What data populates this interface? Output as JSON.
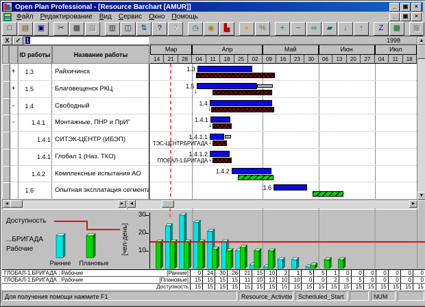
{
  "window": {
    "title": "Open Plan Professional - [Resource Barchart [AMUR]]",
    "controls": [
      {
        "name": "minimize-button",
        "glyph": "_"
      },
      {
        "name": "restore-button",
        "glyph": "▣"
      },
      {
        "name": "close-button",
        "glyph": "×"
      }
    ]
  },
  "menu": {
    "items": [
      "Файл",
      "Редактирование",
      "Вид",
      "Сервис",
      "Окно",
      "Помощь"
    ]
  },
  "toolbar": {
    "groups": [
      [
        {
          "name": "new-file-icon",
          "glyph": "□",
          "color": "#303030"
        },
        {
          "name": "open-file-icon",
          "glyph": "▤",
          "color": "#706000"
        },
        {
          "name": "save-icon",
          "glyph": "▣",
          "color": "#000080"
        }
      ],
      [
        {
          "name": "cut-icon",
          "glyph": "✂",
          "color": "#303030"
        },
        {
          "name": "copy-icon",
          "glyph": "▦",
          "color": "#303030"
        },
        {
          "name": "paste-icon",
          "glyph": "▨",
          "color": "#303030",
          "disabled": true
        }
      ],
      [
        {
          "name": "print-icon",
          "glyph": "▥",
          "color": "#303030"
        },
        {
          "name": "print-preview-icon",
          "glyph": "◫",
          "color": "#303030"
        },
        {
          "name": "sort-icon",
          "glyph": "⇅",
          "color": "#004080"
        },
        {
          "name": "help-icon",
          "glyph": "?",
          "color": "#000080"
        },
        {
          "name": "context-help-icon",
          "glyph": "?",
          "color": "#303030",
          "disabled": true
        }
      ],
      [
        {
          "name": "clock-icon",
          "glyph": "◷",
          "color": "#007070"
        },
        {
          "name": "resource-icon",
          "glyph": "◉",
          "color": "#b08000"
        },
        {
          "name": "barchart-icon",
          "glyph": "▙",
          "color": "#b00000"
        }
      ],
      [
        {
          "name": "cost-icon",
          "glyph": "●",
          "color": "#c8b400"
        },
        {
          "name": "percent-icon",
          "glyph": "%",
          "color": "#807000"
        }
      ],
      [
        {
          "name": "add-icon",
          "glyph": "+",
          "color": "#007070"
        },
        {
          "name": "remove-icon",
          "glyph": "−",
          "color": "#007070"
        },
        {
          "name": "link-icon",
          "glyph": "∞",
          "color": "#007070"
        },
        {
          "name": "bars-icon",
          "glyph": "▰",
          "color": "#007070"
        },
        {
          "name": "move-down-icon",
          "glyph": "↓",
          "color": "#007070"
        },
        {
          "name": "move-up-icon",
          "glyph": "↑",
          "color": "#007070"
        }
      ],
      [
        {
          "name": "zigzag-icon",
          "glyph": "Z",
          "color": "#0000c0"
        },
        {
          "name": "screen-icon",
          "glyph": "▦",
          "color": "#007000"
        }
      ],
      [
        {
          "name": "network-icon",
          "glyph": "▩",
          "color": "#303030",
          "disabled": true
        },
        {
          "name": "network2-icon",
          "glyph": "▩",
          "color": "#303030",
          "disabled": true
        }
      ]
    ]
  },
  "edit_bar": {
    "cancel_glyph": "X",
    "ok_glyph": "✓",
    "value": "1"
  },
  "timeline": {
    "year": "1998",
    "months": [
      {
        "label": "Мар",
        "weeks": 3
      },
      {
        "label": "Апр",
        "weeks": 5
      },
      {
        "label": "Май",
        "weeks": 4
      },
      {
        "label": "Июн",
        "weeks": 4
      },
      {
        "label": "Июл",
        "weeks": 3
      }
    ],
    "week_labels": [
      "14",
      "21",
      "28",
      "04",
      "11",
      "18",
      "25",
      "02",
      "09",
      "16",
      "23",
      "30",
      "06",
      "13",
      "20",
      "27",
      "04",
      "11",
      "18"
    ]
  },
  "task_table": {
    "columns": {
      "id": "ID работы",
      "name": "Название работы"
    }
  },
  "gantt": {
    "time_now_week": 1.42,
    "colors": {
      "early_bar": "#0a0ae0",
      "baseline_bar": "#7c0606",
      "actual_bar": "#00d800",
      "float_bar": "#b4b4b4"
    },
    "rows": [
      {
        "mark": "+",
        "id": "1.3",
        "name": "Райхичинск",
        "level": 1,
        "label": "1.3",
        "bars": [
          {
            "kind": "blue",
            "w0": 3.35,
            "w1": 7.3
          },
          {
            "kind": "red",
            "w0": 3.25,
            "w1": 8.9
          }
        ]
      },
      {
        "mark": "+",
        "id": "1.5",
        "name": "Благовещенск РКЦ",
        "level": 1,
        "label": "1.5",
        "arrow_w": 3.3,
        "bars": [
          {
            "kind": "blue",
            "w0": 3.3,
            "w1": 7.6
          },
          {
            "kind": "gray",
            "w0": 7.6,
            "w1": 8.75
          },
          {
            "kind": "red",
            "w0": 4.45,
            "w1": 8.7
          }
        ]
      },
      {
        "mark": "-",
        "id": "1.4",
        "name": "Свободный",
        "level": 1,
        "label": "1.4",
        "arrow_w": 4.3,
        "bars": [
          {
            "kind": "blue",
            "w0": 4.25,
            "w1": 8.7
          },
          {
            "kind": "red",
            "w0": 4.35,
            "w1": 8.85
          }
        ]
      },
      {
        "mark": "-",
        "id": "1.4.1",
        "name": "Монтажные, ПНР и ПрИ\"",
        "level": 2,
        "label": "1.4.1",
        "arrow_w": 4.35,
        "bars": [
          {
            "kind": "blue",
            "w0": 4.3,
            "w1": 5.7
          },
          {
            "kind": "red",
            "w0": 4.45,
            "w1": 5.8
          }
        ]
      },
      {
        "mark": "",
        "id": "1.4.1",
        "name": "СИТЭК-ЦЕНТР (ИБЭП)",
        "level": 3,
        "label": "1.4.1.1",
        "left_label": "ТЭС-ЦЕНТР.БРИГАДА",
        "arrow_w": 4.35,
        "bars": [
          {
            "kind": "blue",
            "w0": 4.25,
            "w1": 5.3
          },
          {
            "kind": "gray",
            "w0": 5.3,
            "w1": 5.75
          },
          {
            "kind": "red",
            "w0": 4.45,
            "w1": 5.45
          }
        ]
      },
      {
        "mark": "",
        "id": "1.4.1",
        "name": "Глобал 1 (Наз. ТКО)",
        "level": 3,
        "label": "1.4.1.2",
        "left_label": "ГЛОБАЛ-1.БРИГАДА",
        "arrow_w": 4.35,
        "bars": [
          {
            "kind": "blue",
            "w0": 4.25,
            "w1": 5.65
          },
          {
            "kind": "red",
            "w0": 4.45,
            "w1": 5.8
          }
        ]
      },
      {
        "mark": "",
        "id": "1.4.2",
        "name": "Комплексные испытания АО",
        "level": 2,
        "label": "1.4.2",
        "bars": [
          {
            "kind": "blue",
            "w0": 5.8,
            "w1": 8.65
          },
          {
            "kind": "green",
            "w0": 6.25,
            "w1": 8.8
          }
        ]
      },
      {
        "mark": "",
        "id": "1.6",
        "name": "Опытная эксплатация сегмента",
        "level": 1,
        "label": "1.6",
        "bars": [
          {
            "kind": "blue",
            "w0": 8.8,
            "w1": 11.2
          },
          {
            "kind": "green",
            "w0": 11.6,
            "w1": 13.75
          }
        ]
      }
    ]
  },
  "histogram": {
    "unit": "[чел-день]",
    "ticks": [
      30,
      20,
      10
    ],
    "legend": {
      "availability": "Доступность",
      "resource": "...БРИГАДА",
      "resource2": "Рабочие",
      "early": "Ранние",
      "planned": "Плановые"
    },
    "series": {
      "early": [
        0,
        24,
        30,
        26,
        21,
        15,
        10,
        2,
        1,
        5,
        5,
        1,
        0,
        0,
        0,
        0,
        0,
        0,
        0
      ],
      "planned": [
        15,
        15,
        15,
        15,
        11,
        10,
        12,
        10,
        10,
        0,
        0,
        2,
        5,
        5,
        0,
        0,
        0,
        0,
        0
      ],
      "availability": 15
    },
    "colors": {
      "early": "#00e6e6",
      "planned": "#00d800",
      "availability": "#ff0000"
    }
  },
  "value_table": {
    "rows": [
      {
        "label": "ГЛОБАЛ-1.БРИГАДА : Рабочие",
        "unit": "[Ранние]",
        "values": [
          0,
          24,
          30,
          26,
          21,
          15,
          10,
          2,
          1,
          5,
          5,
          1,
          0,
          0,
          0,
          0,
          0,
          0,
          0
        ]
      },
      {
        "label": "ГЛОБАЛ-1.БРИГАДА : Рабочие",
        "unit": "[Плановые]",
        "values": [
          15,
          15,
          15,
          15,
          11,
          10,
          12,
          10,
          10,
          0,
          0,
          2,
          5,
          5,
          0,
          0,
          0,
          0,
          0
        ]
      },
      {
        "label": "",
        "unit": "Доступность",
        "values": [
          15,
          15,
          15,
          15,
          15,
          15,
          15,
          15,
          15,
          15,
          15,
          15,
          15,
          15,
          15,
          15,
          15,
          15,
          15
        ]
      }
    ]
  },
  "status_bar": {
    "message": "Для получения помощи нажмите F1",
    "fields": [
      "Resource_Activities",
      "Scheduled_Start",
      "",
      "NUM",
      ""
    ]
  },
  "chart_data": {
    "type": "bar",
    "categories": [
      "14",
      "21",
      "28",
      "04",
      "11",
      "18",
      "25",
      "02",
      "09",
      "16",
      "23",
      "30",
      "06",
      "13",
      "20",
      "27",
      "04",
      "11",
      "18"
    ],
    "series": [
      {
        "name": "Ранние",
        "values": [
          0,
          24,
          30,
          26,
          21,
          15,
          10,
          2,
          1,
          5,
          5,
          1,
          0,
          0,
          0,
          0,
          0,
          0,
          0
        ]
      },
      {
        "name": "Плановые",
        "values": [
          15,
          15,
          15,
          15,
          11,
          10,
          12,
          10,
          10,
          0,
          0,
          2,
          5,
          5,
          0,
          0,
          0,
          0,
          0
        ]
      },
      {
        "name": "Доступность",
        "values": [
          15,
          15,
          15,
          15,
          15,
          15,
          15,
          15,
          15,
          15,
          15,
          15,
          15,
          15,
          15,
          15,
          15,
          15,
          15
        ]
      }
    ],
    "title": "",
    "xlabel": "",
    "ylabel": "[чел-день]",
    "ylim": [
      0,
      30
    ],
    "legend_position": "left",
    "grid": true
  }
}
